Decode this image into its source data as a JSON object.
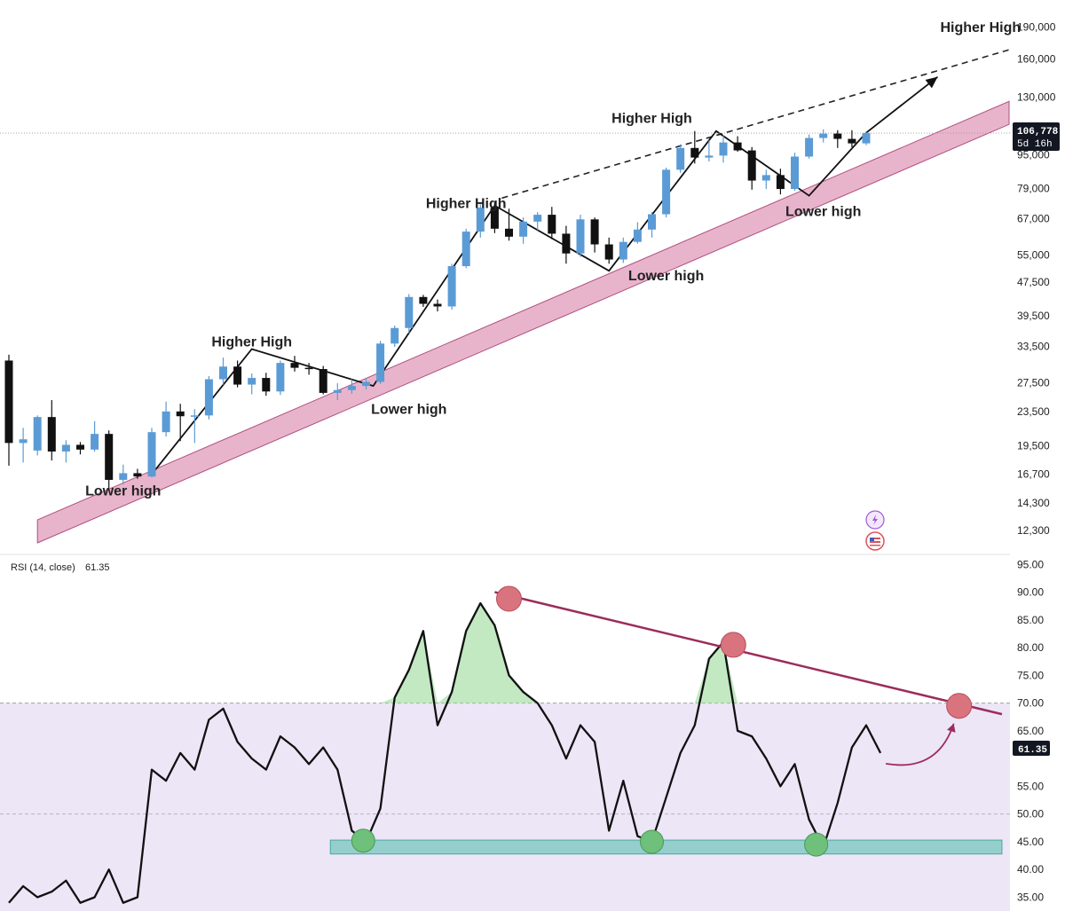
{
  "chart_data": [
    {
      "type": "candlestick",
      "scale": "log",
      "ylim": [
        11500,
        200000
      ],
      "y_ticks": [
        "190,000",
        "160,000",
        "130,000",
        "106,778",
        "95,000",
        "79,000",
        "67,000",
        "55,000",
        "47,500",
        "39,500",
        "33,500",
        "27,500",
        "23,500",
        "19,500",
        "16,700",
        "14,300",
        "12,300"
      ],
      "price_badge": {
        "value": "106,778",
        "countdown": "5d 16h"
      },
      "last_price": 106778,
      "colors": {
        "up": "#5b9bd5",
        "down": "#111111",
        "support_band": "#e8b4cc",
        "support_border": "#b0507e"
      },
      "icons": [
        "lightning-swap-icon",
        "us-flag-icon"
      ],
      "annotations": [
        {
          "text": "Higher High",
          "x": 17,
          "price": 33500
        },
        {
          "text": "Lower high",
          "x": 8,
          "price": 14900
        },
        {
          "text": "Lower high",
          "x": 28,
          "price": 23200
        },
        {
          "text": "Higher High",
          "x": 32,
          "price": 71000
        },
        {
          "text": "Lower high",
          "x": 46,
          "price": 48000
        },
        {
          "text": "Higher High",
          "x": 45,
          "price": 113000
        },
        {
          "text": "Lower high",
          "x": 57,
          "price": 68000
        },
        {
          "text": "Higher High",
          "x": 68,
          "price": 185000
        }
      ],
      "support_band": {
        "start": [
          2,
          11500
        ],
        "end": [
          70,
          112000
        ],
        "width_ratio": 1.08
      },
      "resistance_line": {
        "start": [
          34.5,
          75000
        ],
        "end": [
          70,
          168000
        ]
      },
      "swing_path": [
        [
          10,
          16700
        ],
        [
          17,
          33000
        ],
        [
          25.5,
          27000
        ],
        [
          34,
          72000
        ],
        [
          42,
          50500
        ],
        [
          49.5,
          108000
        ],
        [
          56,
          76000
        ],
        [
          60,
          107000
        ]
      ],
      "projection_arrow": {
        "from": [
          60,
          107000
        ],
        "to": [
          65,
          145000
        ]
      },
      "candles": [
        {
          "o": 31000,
          "h": 32000,
          "l": 17500,
          "c": 19800
        },
        {
          "o": 19800,
          "h": 21500,
          "l": 17800,
          "c": 20200
        },
        {
          "o": 19000,
          "h": 23000,
          "l": 18500,
          "c": 22800
        },
        {
          "o": 22800,
          "h": 25000,
          "l": 18000,
          "c": 18900
        },
        {
          "o": 18900,
          "h": 20100,
          "l": 17800,
          "c": 19600
        },
        {
          "o": 19600,
          "h": 19900,
          "l": 18600,
          "c": 19100
        },
        {
          "o": 19100,
          "h": 22300,
          "l": 18900,
          "c": 20800
        },
        {
          "o": 20800,
          "h": 21200,
          "l": 15500,
          "c": 16200
        },
        {
          "o": 16200,
          "h": 17600,
          "l": 15800,
          "c": 16800
        },
        {
          "o": 16800,
          "h": 17200,
          "l": 16300,
          "c": 16500
        },
        {
          "o": 16500,
          "h": 21500,
          "l": 16400,
          "c": 21000
        },
        {
          "o": 21000,
          "h": 24800,
          "l": 20500,
          "c": 23500
        },
        {
          "o": 23500,
          "h": 24500,
          "l": 20000,
          "c": 22900
        },
        {
          "o": 22900,
          "h": 23800,
          "l": 19800,
          "c": 23000
        },
        {
          "o": 23000,
          "h": 28500,
          "l": 22500,
          "c": 28000
        },
        {
          "o": 28000,
          "h": 31500,
          "l": 27200,
          "c": 30000
        },
        {
          "o": 30000,
          "h": 31000,
          "l": 26800,
          "c": 27200
        },
        {
          "o": 27200,
          "h": 28900,
          "l": 25800,
          "c": 28200
        },
        {
          "o": 28200,
          "h": 29000,
          "l": 25600,
          "c": 26200
        },
        {
          "o": 26200,
          "h": 31000,
          "l": 25700,
          "c": 30600
        },
        {
          "o": 30600,
          "h": 31800,
          "l": 29200,
          "c": 29800
        },
        {
          "o": 29800,
          "h": 30600,
          "l": 28700,
          "c": 29600
        },
        {
          "o": 29600,
          "h": 30100,
          "l": 25800,
          "c": 26000
        },
        {
          "o": 26000,
          "h": 27400,
          "l": 25000,
          "c": 26400
        },
        {
          "o": 26400,
          "h": 28000,
          "l": 25900,
          "c": 27000
        },
        {
          "o": 27000,
          "h": 28200,
          "l": 26500,
          "c": 27600
        },
        {
          "o": 27600,
          "h": 34500,
          "l": 27300,
          "c": 34000
        },
        {
          "o": 34000,
          "h": 37500,
          "l": 33400,
          "c": 37000
        },
        {
          "o": 37000,
          "h": 44500,
          "l": 36000,
          "c": 43800
        },
        {
          "o": 43800,
          "h": 44300,
          "l": 41500,
          "c": 42200
        },
        {
          "o": 42200,
          "h": 43200,
          "l": 40500,
          "c": 41600
        },
        {
          "o": 41600,
          "h": 52500,
          "l": 40900,
          "c": 51800
        },
        {
          "o": 51800,
          "h": 63500,
          "l": 51200,
          "c": 62500
        },
        {
          "o": 62500,
          "h": 72500,
          "l": 60500,
          "c": 71200
        },
        {
          "o": 71200,
          "h": 73500,
          "l": 62000,
          "c": 63500
        },
        {
          "o": 63500,
          "h": 70800,
          "l": 59500,
          "c": 60800
        },
        {
          "o": 60800,
          "h": 67500,
          "l": 58500,
          "c": 66000
        },
        {
          "o": 66000,
          "h": 69500,
          "l": 63000,
          "c": 68500
        },
        {
          "o": 68500,
          "h": 71500,
          "l": 60000,
          "c": 61800
        },
        {
          "o": 61800,
          "h": 64500,
          "l": 52500,
          "c": 55500
        },
        {
          "o": 55500,
          "h": 68500,
          "l": 54500,
          "c": 66800
        },
        {
          "o": 66800,
          "h": 67500,
          "l": 55800,
          "c": 58300
        },
        {
          "o": 58300,
          "h": 60500,
          "l": 52500,
          "c": 53700
        },
        {
          "o": 53700,
          "h": 60500,
          "l": 52700,
          "c": 59100
        },
        {
          "o": 59100,
          "h": 65800,
          "l": 58500,
          "c": 63200
        },
        {
          "o": 63200,
          "h": 69500,
          "l": 60500,
          "c": 68700
        },
        {
          "o": 68700,
          "h": 88500,
          "l": 67500,
          "c": 87500
        },
        {
          "o": 87500,
          "h": 100500,
          "l": 86000,
          "c": 98500
        },
        {
          "o": 98500,
          "h": 108000,
          "l": 90500,
          "c": 93500
        },
        {
          "o": 93500,
          "h": 102500,
          "l": 91500,
          "c": 94500
        },
        {
          "o": 94500,
          "h": 105500,
          "l": 91000,
          "c": 101500
        },
        {
          "o": 101500,
          "h": 105000,
          "l": 96500,
          "c": 97200
        },
        {
          "o": 97200,
          "h": 99000,
          "l": 78500,
          "c": 82500
        },
        {
          "o": 82500,
          "h": 87500,
          "l": 78800,
          "c": 85000
        },
        {
          "o": 85000,
          "h": 88000,
          "l": 76500,
          "c": 78800
        },
        {
          "o": 78800,
          "h": 96000,
          "l": 78000,
          "c": 94000
        },
        {
          "o": 94000,
          "h": 106000,
          "l": 93000,
          "c": 104000
        },
        {
          "o": 104000,
          "h": 109000,
          "l": 101500,
          "c": 106500
        },
        {
          "o": 106500,
          "h": 108500,
          "l": 98500,
          "c": 103500
        },
        {
          "o": 103500,
          "h": 108500,
          "l": 99000,
          "c": 101000
        },
        {
          "o": 101000,
          "h": 108000,
          "l": 100000,
          "c": 106778
        }
      ]
    },
    {
      "type": "line",
      "title": "RSI (14, close)",
      "current_value": "61.35",
      "ylim": [
        33,
        96
      ],
      "y_ticks": [
        "95.00",
        "90.00",
        "85.00",
        "80.00",
        "75.00",
        "70.00",
        "65.00",
        "61.35",
        "55.00",
        "50.00",
        "45.00",
        "40.00",
        "35.00"
      ],
      "overbought": 70,
      "midline": 50,
      "support_zone": {
        "x_start": 22.5,
        "x_end": 69.5,
        "low": 42.8,
        "high": 45.3
      },
      "resistance_line": {
        "start": [
          34,
          90
        ],
        "end": [
          69.5,
          68
        ]
      },
      "peak_markers": [
        {
          "x": 35,
          "y": 88.8
        },
        {
          "x": 50.7,
          "y": 80.5
        },
        {
          "x": 66.5,
          "y": 69.5
        }
      ],
      "trough_markers": [
        {
          "x": 24.8,
          "y": 45.2
        },
        {
          "x": 45,
          "y": 45
        },
        {
          "x": 56.5,
          "y": 44.5
        }
      ],
      "colors": {
        "line": "#111111",
        "resistance": "#9c2c5b",
        "support_zone": "#76c7c0",
        "overbought_fill": "#ede6f7",
        "peak_marker": "#d9737e",
        "trough_marker": "#6fc07a",
        "green_fill": "#a8e0a8",
        "arrow": "#9c2c5b"
      },
      "x": [
        0,
        1,
        2,
        3,
        4,
        5,
        6,
        7,
        8,
        9,
        10,
        11,
        12,
        13,
        14,
        15,
        16,
        17,
        18,
        19,
        20,
        21,
        22,
        23,
        24,
        25,
        26,
        27,
        28,
        29,
        30,
        31,
        32,
        33,
        34,
        35,
        36,
        37,
        38,
        39,
        40,
        41,
        42,
        43,
        44,
        45,
        46,
        47,
        48,
        49,
        50,
        51,
        52,
        53,
        54,
        55,
        56,
        57,
        58,
        59,
        60,
        61
      ],
      "values": [
        34,
        37,
        35,
        36,
        38,
        34,
        35,
        40,
        34,
        35,
        58,
        56,
        61,
        58,
        67,
        69,
        63,
        60,
        58,
        64,
        62,
        59,
        62,
        58,
        47,
        45,
        51,
        71,
        76,
        83,
        66,
        72,
        83,
        88,
        84,
        75,
        72,
        70,
        66,
        60,
        66,
        63,
        47,
        56,
        46,
        45,
        53,
        61,
        66,
        78,
        81,
        65,
        64,
        60,
        55,
        59,
        49,
        44,
        52,
        62,
        66,
        61
      ]
    }
  ]
}
